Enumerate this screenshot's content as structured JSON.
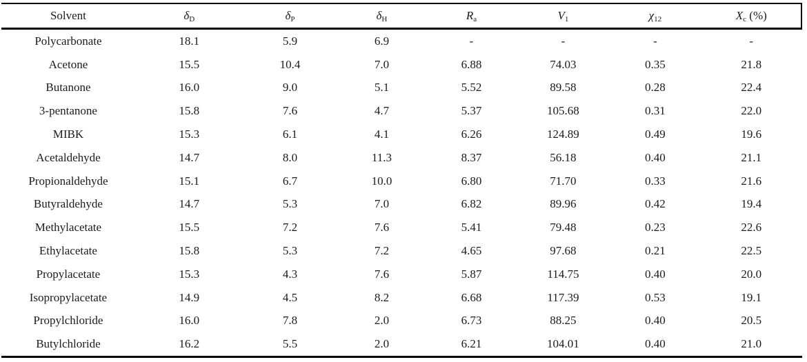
{
  "page": {
    "background_color": "#ffffff",
    "text_color": "#1b1b1b",
    "rule_color": "#000000"
  },
  "table": {
    "columns": [
      {
        "base": "Solvent",
        "sub": "",
        "suffix": ""
      },
      {
        "base": "δ",
        "sub": "D",
        "suffix": ""
      },
      {
        "base": "δ",
        "sub": "P",
        "suffix": ""
      },
      {
        "base": "δ",
        "sub": "H",
        "suffix": ""
      },
      {
        "base": "R",
        "sub": "a",
        "suffix": ""
      },
      {
        "base": "V",
        "sub": "1",
        "suffix": ""
      },
      {
        "base": "χ",
        "sub": "12",
        "suffix": ""
      },
      {
        "base": "X",
        "sub": "c",
        "suffix": " (%)"
      }
    ],
    "rows": [
      {
        "solvent": "Polycarbonate",
        "values": [
          "18.1",
          "5.9",
          "6.9",
          "-",
          "-",
          "-",
          "-"
        ]
      },
      {
        "solvent": "Acetone",
        "values": [
          "15.5",
          "10.4",
          "7.0",
          "6.88",
          "74.03",
          "0.35",
          "21.8"
        ]
      },
      {
        "solvent": "Butanone",
        "values": [
          "16.0",
          "9.0",
          "5.1",
          "5.52",
          "89.58",
          "0.28",
          "22.4"
        ]
      },
      {
        "solvent": "3-pentanone",
        "values": [
          "15.8",
          "7.6",
          "4.7",
          "5.37",
          "105.68",
          "0.31",
          "22.0"
        ]
      },
      {
        "solvent": "MIBK",
        "values": [
          "15.3",
          "6.1",
          "4.1",
          "6.26",
          "124.89",
          "0.49",
          "19.6"
        ]
      },
      {
        "solvent": "Acetaldehyde",
        "values": [
          "14.7",
          "8.0",
          "11.3",
          "8.37",
          "56.18",
          "0.40",
          "21.1"
        ]
      },
      {
        "solvent": "Propionaldehyde",
        "values": [
          "15.1",
          "6.7",
          "10.0",
          "6.80",
          "71.70",
          "0.33",
          "21.6"
        ]
      },
      {
        "solvent": "Butyraldehyde",
        "values": [
          "14.7",
          "5.3",
          "7.0",
          "6.82",
          "89.96",
          "0.42",
          "19.4"
        ]
      },
      {
        "solvent": "Methylacetate",
        "values": [
          "15.5",
          "7.2",
          "7.6",
          "5.41",
          "79.48",
          "0.23",
          "22.6"
        ]
      },
      {
        "solvent": "Ethylacetate",
        "values": [
          "15.8",
          "5.3",
          "7.2",
          "4.65",
          "97.68",
          "0.21",
          "22.5"
        ]
      },
      {
        "solvent": "Propylacetate",
        "values": [
          "15.3",
          "4.3",
          "7.6",
          "5.87",
          "114.75",
          "0.40",
          "20.0"
        ]
      },
      {
        "solvent": "Isopropylacetate",
        "values": [
          "14.9",
          "4.5",
          "8.2",
          "6.68",
          "117.39",
          "0.53",
          "19.1"
        ]
      },
      {
        "solvent": "Propylchloride",
        "values": [
          "16.0",
          "7.8",
          "2.0",
          "6.73",
          "88.25",
          "0.40",
          "20.5"
        ]
      },
      {
        "solvent": "Butylchloride",
        "values": [
          "16.2",
          "5.5",
          "2.0",
          "6.21",
          "104.01",
          "0.40",
          "21.0"
        ]
      }
    ]
  }
}
